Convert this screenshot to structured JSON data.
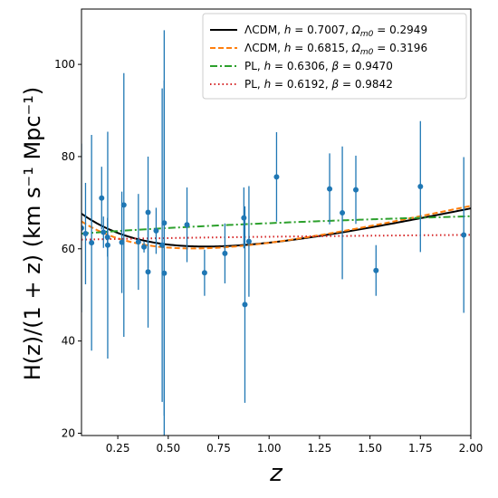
{
  "chart_data": {
    "type": "scatter",
    "xlabel": "z",
    "ylabel": "H(z)/(1 + z) (km s⁻¹ Mpc⁻¹)",
    "xlim": [
      0.07,
      2.0
    ],
    "ylim": [
      19.5,
      112
    ],
    "xticks": [
      0.25,
      0.5,
      0.75,
      1.0,
      1.25,
      1.5,
      1.75,
      2.0
    ],
    "xtick_labels": [
      "0.25",
      "0.50",
      "0.75",
      "1.00",
      "1.25",
      "1.50",
      "1.75",
      "2.00"
    ],
    "yticks": [
      20,
      40,
      60,
      80,
      100
    ],
    "ytick_labels": [
      "20",
      "40",
      "60",
      "80",
      "100"
    ],
    "grid": false,
    "legend_position": "top-right",
    "points": {
      "color": "#1f77b4",
      "data": [
        {
          "z": 0.07,
          "y": 64.5,
          "err": 18.3
        },
        {
          "z": 0.09,
          "y": 63.3,
          "err": 11.0
        },
        {
          "z": 0.12,
          "y": 61.3,
          "err": 23.4
        },
        {
          "z": 0.17,
          "y": 71.0,
          "err": 6.8
        },
        {
          "z": 0.179,
          "y": 63.6,
          "err": 3.4
        },
        {
          "z": 0.199,
          "y": 62.5,
          "err": 4.2
        },
        {
          "z": 0.2,
          "y": 60.8,
          "err": 24.6
        },
        {
          "z": 0.27,
          "y": 61.4,
          "err": 11.0
        },
        {
          "z": 0.28,
          "y": 69.5,
          "err": 28.6
        },
        {
          "z": 0.352,
          "y": 61.5,
          "err": 10.4
        },
        {
          "z": 0.38,
          "y": 60.4,
          "err": 1.2
        },
        {
          "z": 0.4,
          "y": 67.9,
          "err": 12.1
        },
        {
          "z": 0.4,
          "y": 55.0,
          "err": 12.1
        },
        {
          "z": 0.44,
          "y": 63.9,
          "err": 5.0
        },
        {
          "z": 0.47,
          "y": 60.8,
          "err": 34.0
        },
        {
          "z": 0.48,
          "y": 65.6,
          "err": 41.8
        },
        {
          "z": 0.48,
          "y": 54.7,
          "err": 41.8
        },
        {
          "z": 0.593,
          "y": 65.2,
          "err": 8.1
        },
        {
          "z": 0.68,
          "y": 54.8,
          "err": 5.0
        },
        {
          "z": 0.781,
          "y": 59.0,
          "err": 6.5
        },
        {
          "z": 0.875,
          "y": 66.7,
          "err": 6.6
        },
        {
          "z": 0.88,
          "y": 47.9,
          "err": 21.3
        },
        {
          "z": 0.9,
          "y": 61.6,
          "err": 12.0
        },
        {
          "z": 1.037,
          "y": 75.6,
          "err": 9.7
        },
        {
          "z": 1.3,
          "y": 73.0,
          "err": 7.7
        },
        {
          "z": 1.363,
          "y": 67.8,
          "err": 14.4
        },
        {
          "z": 1.43,
          "y": 72.8,
          "err": 7.4
        },
        {
          "z": 1.53,
          "y": 55.3,
          "err": 5.5
        },
        {
          "z": 1.75,
          "y": 73.5,
          "err": 14.2
        },
        {
          "z": 1.965,
          "y": 63.0,
          "err": 16.9
        }
      ]
    },
    "series": [
      {
        "name": "ΛCDM, h = 0.7007, Ωm0 = 0.2949",
        "legend_main": "ΛCDM, ",
        "legend_p1_sym": "h",
        "legend_p1_val": " = 0.7007, ",
        "legend_p2_sym": "Ω",
        "legend_p2_sub": "m0",
        "legend_p2_val": " = 0.2949",
        "model": "lcdm",
        "h": 0.7007,
        "om": 0.2949,
        "color": "#000000",
        "dash": "",
        "width": 2
      },
      {
        "name": "ΛCDM, h = 0.6815, Ωm0 = 0.3196",
        "legend_main": "ΛCDM, ",
        "legend_p1_sym": "h",
        "legend_p1_val": " = 0.6815, ",
        "legend_p2_sym": "Ω",
        "legend_p2_sub": "m0",
        "legend_p2_val": " = 0.3196",
        "model": "lcdm",
        "h": 0.6815,
        "om": 0.3196,
        "color": "#ff7f0e",
        "dash": "6,3",
        "width": 2
      },
      {
        "name": "PL, h = 0.6306, β = 0.9470",
        "legend_main": "PL, ",
        "legend_p1_sym": "h",
        "legend_p1_val": " = 0.6306, ",
        "legend_p2_sym": "β",
        "legend_p2_sub": "",
        "legend_p2_val": " = 0.9470",
        "model": "pl",
        "h": 0.6306,
        "beta": 0.947,
        "color": "#2ca02c",
        "dash": "8,3,2,3",
        "width": 2
      },
      {
        "name": "PL, h = 0.6192, β = 0.9842",
        "legend_main": "PL, ",
        "legend_p1_sym": "h",
        "legend_p1_val": " = 0.6192, ",
        "legend_p2_sym": "β",
        "legend_p2_sub": "",
        "legend_p2_val": " = 0.9842",
        "model": "pl",
        "h": 0.6192,
        "beta": 0.9842,
        "color": "#d62728",
        "dash": "1.5,3",
        "width": 2
      }
    ]
  }
}
